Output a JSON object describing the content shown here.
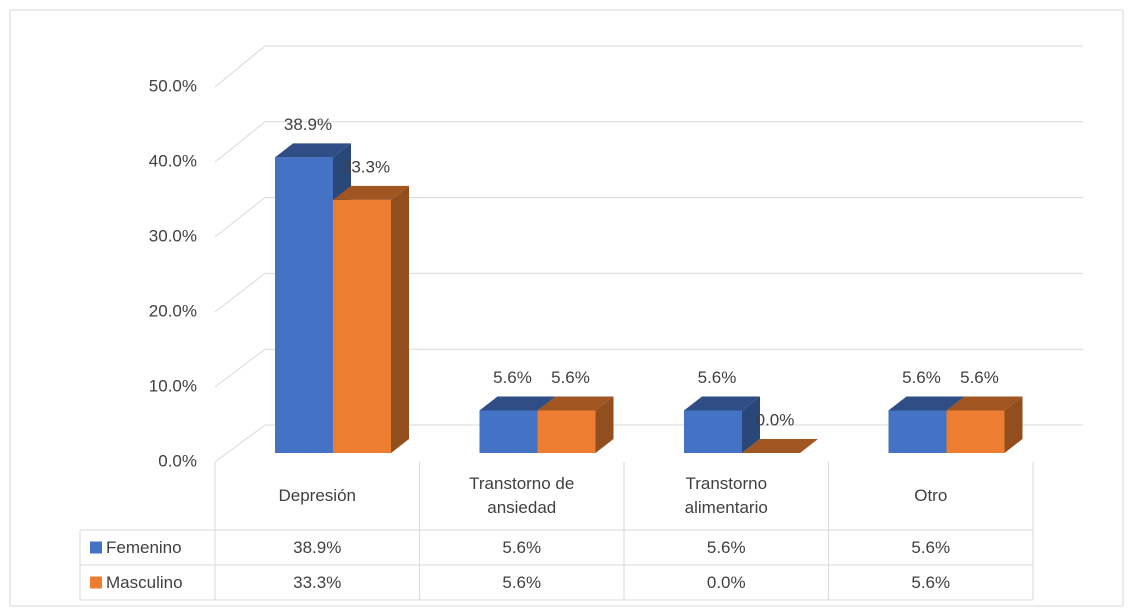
{
  "chart_data": {
    "type": "bar3d",
    "categories": [
      "Depresión",
      "Transtorno de ansiedad",
      "Transtorno alimentario",
      "Otro"
    ],
    "series": [
      {
        "name": "Femenino",
        "color": "#4472c4",
        "values": [
          38.9,
          5.6,
          5.6,
          5.6
        ],
        "value_labels": [
          "38.9%",
          "5.6%",
          "5.6%",
          "5.6%"
        ]
      },
      {
        "name": "Masculino",
        "color": "#ed7d31",
        "values": [
          33.3,
          5.6,
          0.0,
          5.6
        ],
        "value_labels": [
          "33.3%",
          "5.6%",
          "0.0%",
          "5.6%"
        ]
      }
    ],
    "ylim": [
      0,
      50
    ],
    "yticks": [
      {
        "value": 0,
        "label": "0.0%"
      },
      {
        "value": 10,
        "label": "10.0%"
      },
      {
        "value": 20,
        "label": "20.0%"
      },
      {
        "value": 30,
        "label": "30.0%"
      },
      {
        "value": 40,
        "label": "40.0%"
      },
      {
        "value": 50,
        "label": "50.0%"
      }
    ],
    "grid": true,
    "data_table": true
  }
}
